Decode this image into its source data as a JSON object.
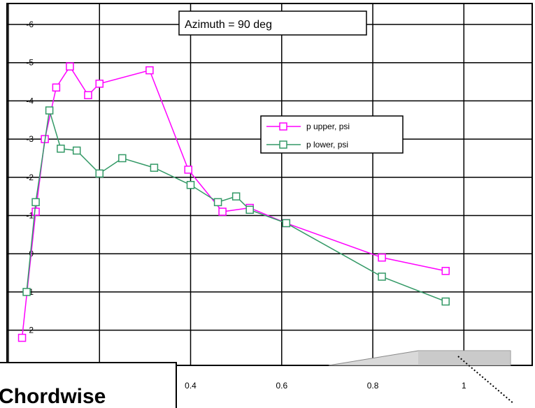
{
  "chart_data": {
    "type": "line",
    "title": "Azimuth = 90 deg",
    "xlabel": "",
    "ylabel": "",
    "xlim": [
      0,
      1
    ],
    "ylim": [
      -6,
      3
    ],
    "y_inverted": true,
    "grid": true,
    "legend_position": "right",
    "y_ticks": [
      -6,
      -5,
      -4,
      -3,
      -2,
      -1,
      0,
      1,
      2
    ],
    "x_ticks_visible": [
      0.4,
      0.6,
      0.8,
      1
    ],
    "series": [
      {
        "name": "p upper, psi",
        "color": "#ff00ff",
        "marker": "square",
        "x": [
          0.03,
          0.06,
          0.08,
          0.105,
          0.135,
          0.175,
          0.2,
          0.31,
          0.395,
          0.47,
          0.53,
          0.61,
          0.82,
          0.96
        ],
        "y": [
          2.2,
          -1.1,
          -3.0,
          -4.35,
          -4.9,
          -4.15,
          -4.45,
          -4.8,
          -2.2,
          -1.1,
          -1.2,
          -0.8,
          0.1,
          0.45
        ]
      },
      {
        "name": "p lower, psi",
        "color": "#339966",
        "marker": "square",
        "x": [
          0.04,
          0.06,
          0.09,
          0.115,
          0.15,
          0.2,
          0.25,
          0.32,
          0.4,
          0.46,
          0.5,
          0.53,
          0.61,
          0.82,
          0.96
        ],
        "y": [
          1.0,
          -1.35,
          -3.75,
          -2.75,
          -2.7,
          -2.1,
          -2.5,
          -2.25,
          -1.8,
          -1.35,
          -1.5,
          -1.15,
          -0.8,
          0.6,
          1.25
        ]
      }
    ],
    "footer_label": "Chordwise"
  }
}
